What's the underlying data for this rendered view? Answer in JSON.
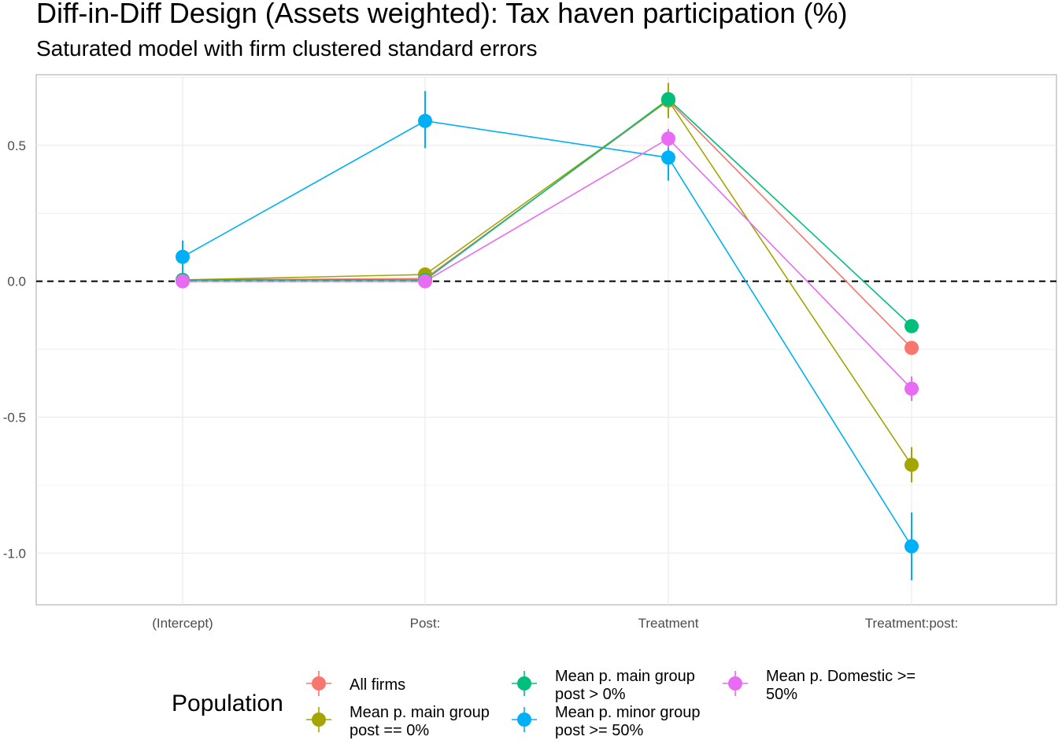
{
  "chart_data": {
    "type": "line",
    "title": "Diff-in-Diff Design (Assets weighted): Tax haven participation (%)",
    "subtitle": "Saturated model with firm clustered standard errors",
    "categories": [
      "(Intercept)",
      "Post:",
      "Treatment",
      "Treatment:post:"
    ],
    "ylim": [
      -1.19,
      0.76
    ],
    "yticks": [
      -1.0,
      -0.5,
      0.0,
      0.5
    ],
    "ytick_labels": [
      "-1.0",
      "-0.5",
      "0.0",
      "0.5"
    ],
    "reference_line": 0,
    "grid": true,
    "legend": {
      "title": "Population",
      "position": "bottom"
    },
    "series": [
      {
        "name": "All firms",
        "color": "#F8766D",
        "values": [
          0.005,
          0.01,
          0.665,
          -0.245
        ],
        "lower": [
          0.0,
          0.0,
          0.64,
          -0.27
        ],
        "upper": [
          0.01,
          0.02,
          0.69,
          -0.22
        ]
      },
      {
        "name": "Mean p. main group post == 0%",
        "color": "#A3A500",
        "values": [
          0.005,
          0.025,
          0.665,
          -0.675
        ],
        "lower": [
          -0.005,
          0.005,
          0.6,
          -0.74
        ],
        "upper": [
          0.015,
          0.045,
          0.73,
          -0.61
        ]
      },
      {
        "name": "Mean p. main group post > 0%",
        "color": "#00BF7D",
        "values": [
          0.005,
          0.005,
          0.67,
          -0.165
        ],
        "lower": [
          0.0,
          0.0,
          0.65,
          -0.18
        ],
        "upper": [
          0.01,
          0.01,
          0.69,
          -0.15
        ]
      },
      {
        "name": "Mean p. minor group post >= 50%",
        "color": "#00B0F6",
        "values": [
          0.09,
          0.59,
          0.455,
          -0.975
        ],
        "lower": [
          0.03,
          0.49,
          0.37,
          -1.1
        ],
        "upper": [
          0.15,
          0.7,
          0.54,
          -0.85
        ]
      },
      {
        "name": "Mean p. Domestic >= 50%",
        "color": "#E76BF3",
        "values": [
          0.0,
          0.0,
          0.525,
          -0.395
        ],
        "lower": [
          -0.005,
          -0.005,
          0.49,
          -0.44
        ],
        "upper": [
          0.005,
          0.005,
          0.56,
          -0.35
        ]
      }
    ]
  },
  "legend_items": [
    {
      "line1": "All firms",
      "line2": ""
    },
    {
      "line1": "Mean p. main group",
      "line2": "post == 0%"
    },
    {
      "line1": "Mean p. main group",
      "line2": "post > 0%"
    },
    {
      "line1": "Mean p. minor group",
      "line2": "post >= 50%"
    },
    {
      "line1": "Mean p. Domestic >=",
      "line2": "50%"
    }
  ]
}
